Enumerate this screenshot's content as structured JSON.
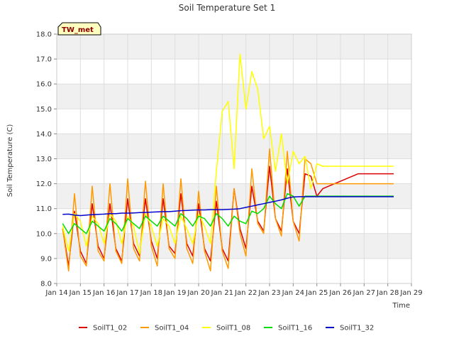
{
  "chart_data": {
    "type": "line",
    "title": "Soil Temperature Set 1",
    "xlabel": "Time",
    "ylabel": "Soil Temperature (C)",
    "ylim": [
      8.0,
      18.0
    ],
    "xlim": [
      "Jan 14",
      "Jan 29"
    ],
    "x_ticks": [
      "Jan 14",
      "Jan 15",
      "Jan 16",
      "Jan 17",
      "Jan 18",
      "Jan 19",
      "Jan 20",
      "Jan 21",
      "Jan 22",
      "Jan 23",
      "Jan 24",
      "Jan 25",
      "Jan 26",
      "Jan 27",
      "Jan 28",
      "Jan 29"
    ],
    "y_ticks": [
      "8.0",
      "9.0",
      "10.0",
      "11.0",
      "12.0",
      "13.0",
      "14.0",
      "15.0",
      "16.0",
      "17.0",
      "18.0"
    ],
    "badge": "TW_met",
    "legend_position": "bottom",
    "grid": true,
    "x": [
      "Jan 14.25",
      "Jan 14.5",
      "Jan 14.75",
      "Jan 15",
      "Jan 15.25",
      "Jan 15.5",
      "Jan 15.75",
      "Jan 16",
      "Jan 16.25",
      "Jan 16.5",
      "Jan 16.75",
      "Jan 17",
      "Jan 17.25",
      "Jan 17.5",
      "Jan 17.75",
      "Jan 18",
      "Jan 18.25",
      "Jan 18.5",
      "Jan 18.75",
      "Jan 19",
      "Jan 19.25",
      "Jan 19.5",
      "Jan 19.75",
      "Jan 20",
      "Jan 20.25",
      "Jan 20.5",
      "Jan 20.75",
      "Jan 21",
      "Jan 21.25",
      "Jan 21.5",
      "Jan 21.75",
      "Jan 22",
      "Jan 22.25",
      "Jan 22.5",
      "Jan 22.75",
      "Jan 23",
      "Jan 23.25",
      "Jan 23.5",
      "Jan 23.75",
      "Jan 24",
      "Jan 24.25",
      "Jan 24.5",
      "Jan 24.75",
      "Jan 25",
      "Jan 25.25",
      "Jan 25.5",
      "Jan 25.75",
      "Jan 26",
      "Jan 26.25",
      "Jan 26.5",
      "Jan 26.75",
      "Jan 27",
      "Jan 27.25",
      "Jan 27.5",
      "Jan 27.75",
      "Jan 28",
      "Jan 28.25"
    ],
    "series": [
      {
        "name": "SoilT1_02",
        "color": "#dd0000",
        "values": [
          10.2,
          8.7,
          10.9,
          9.3,
          8.8,
          11.2,
          9.5,
          9.0,
          11.2,
          9.4,
          8.9,
          11.4,
          9.6,
          9.1,
          11.4,
          9.7,
          9.0,
          11.4,
          9.5,
          9.2,
          11.6,
          9.6,
          9.1,
          11.2,
          9.4,
          8.9,
          11.3,
          9.4,
          8.9,
          11.8,
          10.2,
          9.4,
          11.9,
          10.5,
          10.1,
          12.7,
          10.6,
          10.1,
          12.6,
          10.5,
          10.0,
          12.4,
          12.3,
          11.5,
          11.8,
          11.9,
          12.0,
          12.1,
          12.2,
          12.3,
          12.4,
          12.4,
          12.4,
          12.4,
          12.4,
          12.4,
          12.4
        ]
      },
      {
        "name": "SoilT1_04",
        "color": "#ff9900",
        "values": [
          10.2,
          8.5,
          11.6,
          9.1,
          8.7,
          11.9,
          9.3,
          8.9,
          12.0,
          9.3,
          8.8,
          12.2,
          9.4,
          8.9,
          12.1,
          9.5,
          8.7,
          12.0,
          9.4,
          9.0,
          12.2,
          9.4,
          8.8,
          11.7,
          9.3,
          8.5,
          11.9,
          9.3,
          8.6,
          11.8,
          10.0,
          9.1,
          12.6,
          10.4,
          10.0,
          13.4,
          10.6,
          9.9,
          13.3,
          10.5,
          9.7,
          13.0,
          12.8,
          12.0,
          12.0,
          12.0,
          12.0,
          12.0,
          12.0,
          12.0,
          12.0,
          12.0,
          12.0,
          12.0,
          12.0,
          12.0,
          12.0
        ]
      },
      {
        "name": "SoilT1_08",
        "color": "#ffff00",
        "values": [
          10.3,
          9.3,
          10.8,
          10.5,
          9.5,
          10.7,
          10.4,
          9.6,
          10.8,
          10.5,
          9.6,
          10.7,
          10.3,
          9.2,
          10.8,
          10.3,
          9.5,
          10.6,
          10.3,
          9.6,
          10.7,
          10.2,
          9.6,
          10.8,
          10.3,
          9.6,
          12.5,
          14.9,
          15.3,
          12.6,
          17.2,
          15.0,
          16.5,
          15.8,
          13.8,
          14.3,
          12.5,
          14.0,
          12.0,
          13.3,
          12.8,
          13.1,
          11.8,
          12.8,
          12.7,
          12.7,
          12.7,
          12.7,
          12.7,
          12.7,
          12.7,
          12.7,
          12.7,
          12.7,
          12.7,
          12.7,
          12.7
        ]
      },
      {
        "name": "SoilT1_16",
        "color": "#00dd00",
        "values": [
          10.4,
          10.0,
          10.4,
          10.2,
          10.0,
          10.5,
          10.3,
          10.1,
          10.6,
          10.4,
          10.1,
          10.6,
          10.4,
          10.2,
          10.7,
          10.5,
          10.3,
          10.7,
          10.5,
          10.3,
          10.8,
          10.6,
          10.3,
          10.7,
          10.6,
          10.3,
          10.8,
          10.6,
          10.3,
          10.7,
          10.5,
          10.4,
          10.9,
          10.8,
          11.0,
          11.5,
          11.2,
          11.0,
          11.6,
          11.5,
          11.1,
          11.5,
          11.5,
          11.5,
          11.5,
          11.5,
          11.5,
          11.5,
          11.5,
          11.5,
          11.5,
          11.5,
          11.5,
          11.5,
          11.5,
          11.5,
          11.5
        ]
      },
      {
        "name": "SoilT1_32",
        "color": "#0000cc",
        "values": [
          10.77,
          10.78,
          10.74,
          10.72,
          10.74,
          10.76,
          10.77,
          10.78,
          10.8,
          10.8,
          10.82,
          10.82,
          10.83,
          10.84,
          10.85,
          10.86,
          10.87,
          10.88,
          10.88,
          10.9,
          10.92,
          10.93,
          10.94,
          10.95,
          10.95,
          10.96,
          10.96,
          10.96,
          10.97,
          10.98,
          11.0,
          11.05,
          11.1,
          11.15,
          11.2,
          11.25,
          11.3,
          11.35,
          11.42,
          11.47,
          11.48,
          11.48,
          11.48,
          11.48,
          11.48,
          11.48,
          11.48,
          11.48,
          11.48,
          11.48,
          11.48,
          11.48,
          11.48,
          11.48,
          11.48,
          11.48,
          11.48
        ]
      }
    ]
  }
}
